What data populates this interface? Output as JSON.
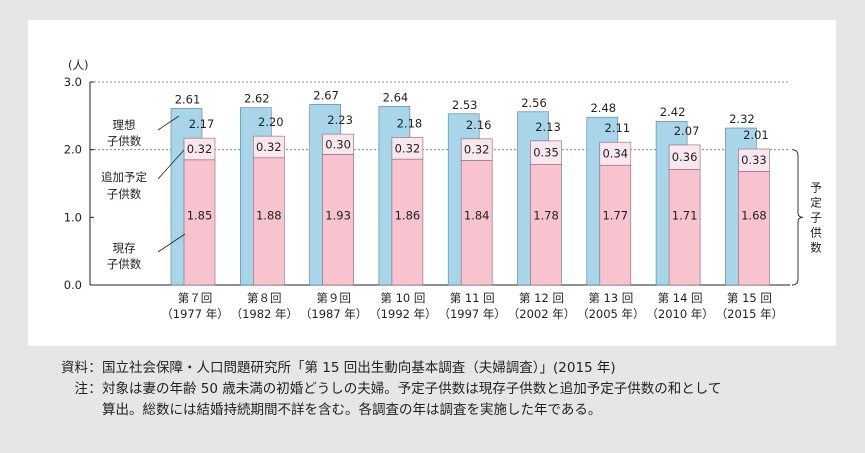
{
  "chart_data": {
    "type": "bar",
    "y_unit": "(人)",
    "ylim": [
      0,
      3.0
    ],
    "yticks": [
      "0.0",
      "1.0",
      "2.0",
      "3.0"
    ],
    "grid": "dashed at 2.0 and 3.0",
    "categories": [
      [
        "第７回",
        "（1977 年）"
      ],
      [
        "第８回",
        "（1982 年）"
      ],
      [
        "第９回",
        "（1987 年）"
      ],
      [
        "第 10 回",
        "（1992 年）"
      ],
      [
        "第 11 回",
        "（1997 年）"
      ],
      [
        "第 12 回",
        "（2002 年）"
      ],
      [
        "第 13 回",
        "（2005 年）"
      ],
      [
        "第 14 回",
        "（2010 年）"
      ],
      [
        "第 15 回",
        "（2015 年）"
      ]
    ],
    "series": [
      {
        "name": "理想子供数",
        "values": [
          2.61,
          2.62,
          2.67,
          2.64,
          2.53,
          2.56,
          2.48,
          2.42,
          2.32
        ],
        "labels": [
          "2.61",
          "2.62",
          "2.67",
          "2.64",
          "2.53",
          "2.56",
          "2.48",
          "2.42",
          "2.32"
        ],
        "color": "#a8d5ea"
      },
      {
        "name": "現存子供数",
        "values": [
          1.85,
          1.88,
          1.93,
          1.86,
          1.84,
          1.78,
          1.77,
          1.71,
          1.68
        ],
        "labels": [
          "1.85",
          "1.88",
          "1.93",
          "1.86",
          "1.84",
          "1.78",
          "1.77",
          "1.71",
          "1.68"
        ],
        "color": "#f7c3cf"
      },
      {
        "name": "追加予定子供数",
        "values": [
          0.32,
          0.32,
          0.3,
          0.32,
          0.32,
          0.35,
          0.34,
          0.36,
          0.33
        ],
        "labels": [
          "0.32",
          "0.32",
          "0.30",
          "0.32",
          "0.32",
          "0.35",
          "0.34",
          "0.36",
          "0.33"
        ],
        "color": "#f8e7ef"
      }
    ],
    "planned_totals": {
      "values": [
        2.17,
        2.2,
        2.23,
        2.18,
        2.16,
        2.13,
        2.11,
        2.07,
        2.01
      ],
      "labels": [
        "2.17",
        "2.20",
        "2.23",
        "2.18",
        "2.16",
        "2.13",
        "2.11",
        "2.07",
        "2.01"
      ]
    },
    "left_labels": {
      "ideal": [
        "理想",
        "子供数"
      ],
      "additional": [
        "追加予定",
        "子供数"
      ],
      "existing": [
        "現存",
        "子供数"
      ]
    },
    "brace_label": "予定子供数"
  },
  "notes": {
    "source_label": "資料",
    "source_text": "国立社会保障・人口問題研究所「第 15 回出生動向基本調査（夫婦調査）」(2015 年)",
    "note_label": "注",
    "note_text_1": "対象は妻の年齢 50 歳未満の初婚どうしの夫婦。予定子供数は現存子供数と追加予定子供数の和として",
    "note_text_2": "算出。総数には結婚持続期間不詳を含む。各調査の年は調査を実施した年である。"
  }
}
